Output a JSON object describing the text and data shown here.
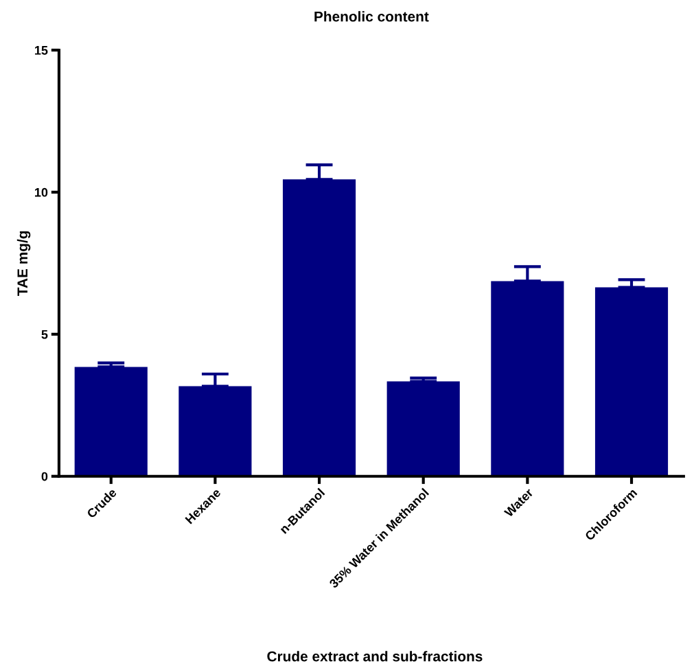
{
  "chart_data": {
    "type": "bar",
    "title": "Phenolic content",
    "xlabel": "Crude extract and sub-fractions",
    "ylabel": "TAE mg/g",
    "categories": [
      "Crude",
      "Hexane",
      "n-Butanol",
      "35% Water in Methanol",
      "Water",
      "Chloroform"
    ],
    "values": [
      3.85,
      3.17,
      10.45,
      3.34,
      6.87,
      6.65
    ],
    "errors": [
      [
        3.85,
        3.99
      ],
      [
        3.17,
        3.6
      ],
      [
        10.45,
        10.96
      ],
      [
        3.34,
        3.46
      ],
      [
        6.87,
        7.38
      ],
      [
        6.65,
        6.92
      ]
    ],
    "color": "#000080",
    "ylim": [
      0,
      15
    ],
    "yticks": [
      0,
      5,
      10,
      15
    ],
    "grid": false
  }
}
